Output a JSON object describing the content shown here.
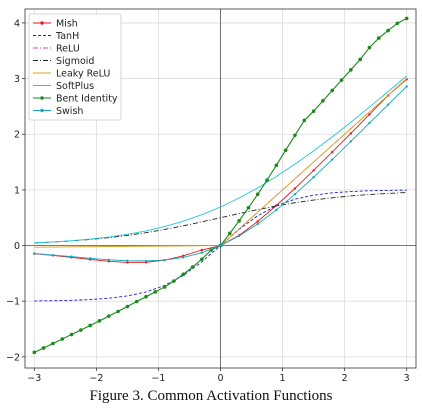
{
  "caption": "Figure 3.  Common Activation Functions",
  "chart_data": {
    "type": "line",
    "title": "",
    "xlabel": "",
    "ylabel": "",
    "xlim": [
      -3.15,
      3.15
    ],
    "ylim": [
      -2.2,
      4.25
    ],
    "xticks": [
      -3,
      -2,
      -1,
      0,
      1,
      2,
      3
    ],
    "yticks": [
      -2,
      -1,
      0,
      1,
      2,
      3,
      4
    ],
    "xtick_labels": [
      "−3",
      "−2",
      "−1",
      "0",
      "1",
      "2",
      "3"
    ],
    "ytick_labels": [
      "−2",
      "−1",
      "0",
      "1",
      "2",
      "3",
      "4"
    ],
    "grid": true,
    "legend_position": "upper-left",
    "series": [
      {
        "name": "Mish",
        "color": "#e41a1c",
        "style": "solid",
        "marker": "dot",
        "x": [
          -3.0,
          -2.7,
          -2.4,
          -2.1,
          -1.8,
          -1.5,
          -1.2,
          -0.9,
          -0.6,
          -0.3,
          0.0,
          0.3,
          0.6,
          0.9,
          1.2,
          1.5,
          1.8,
          2.1,
          2.4,
          2.7,
          3.0
        ],
        "y": [
          -0.146,
          -0.177,
          -0.213,
          -0.25,
          -0.283,
          -0.303,
          -0.3,
          -0.262,
          -0.184,
          -0.08,
          0.0,
          0.183,
          0.434,
          0.72,
          1.027,
          1.349,
          1.679,
          2.015,
          2.355,
          2.697,
          2.987
        ]
      },
      {
        "name": "TanH",
        "color": "#1f1fd6",
        "style": "dashed",
        "marker": "none",
        "x": [
          -3.0,
          -2.7,
          -2.4,
          -2.1,
          -1.8,
          -1.5,
          -1.2,
          -0.9,
          -0.6,
          -0.3,
          0.0,
          0.3,
          0.6,
          0.9,
          1.2,
          1.5,
          1.8,
          2.1,
          2.4,
          2.7,
          3.0
        ],
        "y": [
          -0.995,
          -0.991,
          -0.984,
          -0.97,
          -0.947,
          -0.905,
          -0.834,
          -0.716,
          -0.537,
          -0.291,
          0.0,
          0.291,
          0.537,
          0.716,
          0.834,
          0.905,
          0.947,
          0.97,
          0.984,
          0.991,
          0.995
        ]
      },
      {
        "name": "ReLU",
        "color": "#cc44cc",
        "style": "dashdot",
        "marker": "none",
        "x": [
          -3.0,
          0.0,
          3.0
        ],
        "y": [
          0.0,
          0.0,
          3.0
        ]
      },
      {
        "name": "Sigmoid",
        "color": "#222222",
        "style": "dashdot",
        "marker": "none",
        "x": [
          -3.0,
          -2.7,
          -2.4,
          -2.1,
          -1.8,
          -1.5,
          -1.2,
          -0.9,
          -0.6,
          -0.3,
          0.0,
          0.3,
          0.6,
          0.9,
          1.2,
          1.5,
          1.8,
          2.1,
          2.4,
          2.7,
          3.0
        ],
        "y": [
          0.047,
          0.063,
          0.083,
          0.109,
          0.142,
          0.182,
          0.231,
          0.289,
          0.354,
          0.426,
          0.5,
          0.574,
          0.646,
          0.711,
          0.769,
          0.818,
          0.858,
          0.891,
          0.917,
          0.937,
          0.953
        ]
      },
      {
        "name": "Leaky ReLU",
        "color": "#d9a520",
        "style": "solid",
        "marker": "none",
        "x": [
          -3.0,
          0.0,
          3.0
        ],
        "y": [
          -0.03,
          0.0,
          3.0
        ]
      },
      {
        "name": "SoftPlus",
        "color": "#20c8d8",
        "style": "solid",
        "marker": "none",
        "x": [
          -3.0,
          -2.7,
          -2.4,
          -2.1,
          -1.8,
          -1.5,
          -1.2,
          -0.9,
          -0.6,
          -0.3,
          0.0,
          0.3,
          0.6,
          0.9,
          1.2,
          1.5,
          1.8,
          2.1,
          2.4,
          2.7,
          3.0
        ],
        "y": [
          0.049,
          0.065,
          0.087,
          0.116,
          0.153,
          0.201,
          0.263,
          0.341,
          0.437,
          0.554,
          0.693,
          0.854,
          1.037,
          1.241,
          1.463,
          1.701,
          1.953,
          2.216,
          2.488,
          2.765,
          3.049
        ]
      },
      {
        "name": "Bent Identity",
        "color": "#1a8a1a",
        "style": "solid",
        "marker": "dot",
        "x": [
          -3.0,
          -2.85,
          -2.7,
          -2.55,
          -2.4,
          -2.25,
          -2.1,
          -1.95,
          -1.8,
          -1.65,
          -1.5,
          -1.35,
          -1.2,
          -1.05,
          -0.9,
          -0.75,
          -0.6,
          -0.45,
          -0.3,
          -0.15,
          0.0,
          0.15,
          0.3,
          0.45,
          0.6,
          0.75,
          0.9,
          1.05,
          1.2,
          1.35,
          1.5,
          1.65,
          1.8,
          1.95,
          2.1,
          2.25,
          2.4,
          2.55,
          2.7,
          2.85,
          3.0
        ],
        "y": [
          -1.919,
          -1.84,
          -1.76,
          -1.68,
          -1.599,
          -1.518,
          -1.436,
          -1.353,
          -1.268,
          -1.183,
          -1.095,
          -1.005,
          -0.919,
          -0.832,
          -0.744,
          -0.637,
          -0.517,
          -0.387,
          -0.244,
          -0.081,
          0.0,
          0.219,
          0.444,
          0.679,
          0.922,
          1.176,
          1.441,
          1.713,
          1.981,
          2.247,
          2.414,
          2.6,
          2.786,
          2.972,
          3.157,
          3.343,
          3.557,
          3.727,
          3.862,
          3.993,
          4.081
        ]
      },
      {
        "name": "Swish",
        "color": "#17a8c0",
        "style": "solid",
        "marker": "dot",
        "x": [
          -3.0,
          -2.7,
          -2.4,
          -2.1,
          -1.8,
          -1.5,
          -1.2,
          -0.9,
          -0.6,
          -0.3,
          0.0,
          0.3,
          0.6,
          0.9,
          1.2,
          1.5,
          1.8,
          2.1,
          2.4,
          2.7,
          3.0
        ],
        "y": [
          -0.142,
          -0.171,
          -0.199,
          -0.229,
          -0.256,
          -0.273,
          -0.277,
          -0.26,
          -0.213,
          -0.128,
          0.0,
          0.172,
          0.388,
          0.64,
          0.923,
          1.227,
          1.545,
          1.871,
          2.201,
          2.53,
          2.858
        ]
      }
    ]
  }
}
